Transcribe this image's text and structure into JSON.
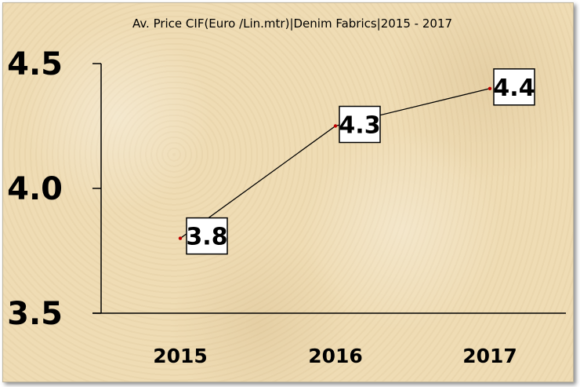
{
  "chart_data": {
    "type": "line",
    "title": "Av. Price CIF(Euro /Lin.mtr)|Denim Fabrics|2015 - 2017",
    "categories": [
      "2015",
      "2016",
      "2017"
    ],
    "values": [
      3.8,
      4.25,
      4.4
    ],
    "data_labels": [
      "3.8",
      "4.3",
      "4.4"
    ],
    "ylim": [
      3.5,
      4.5
    ],
    "yticks": [
      "3.5",
      "4.0",
      "4.5"
    ],
    "grid": false,
    "legend": "none",
    "colors": {
      "line": "#000000",
      "marker": "#c00000",
      "background": "#efdcb4"
    }
  }
}
